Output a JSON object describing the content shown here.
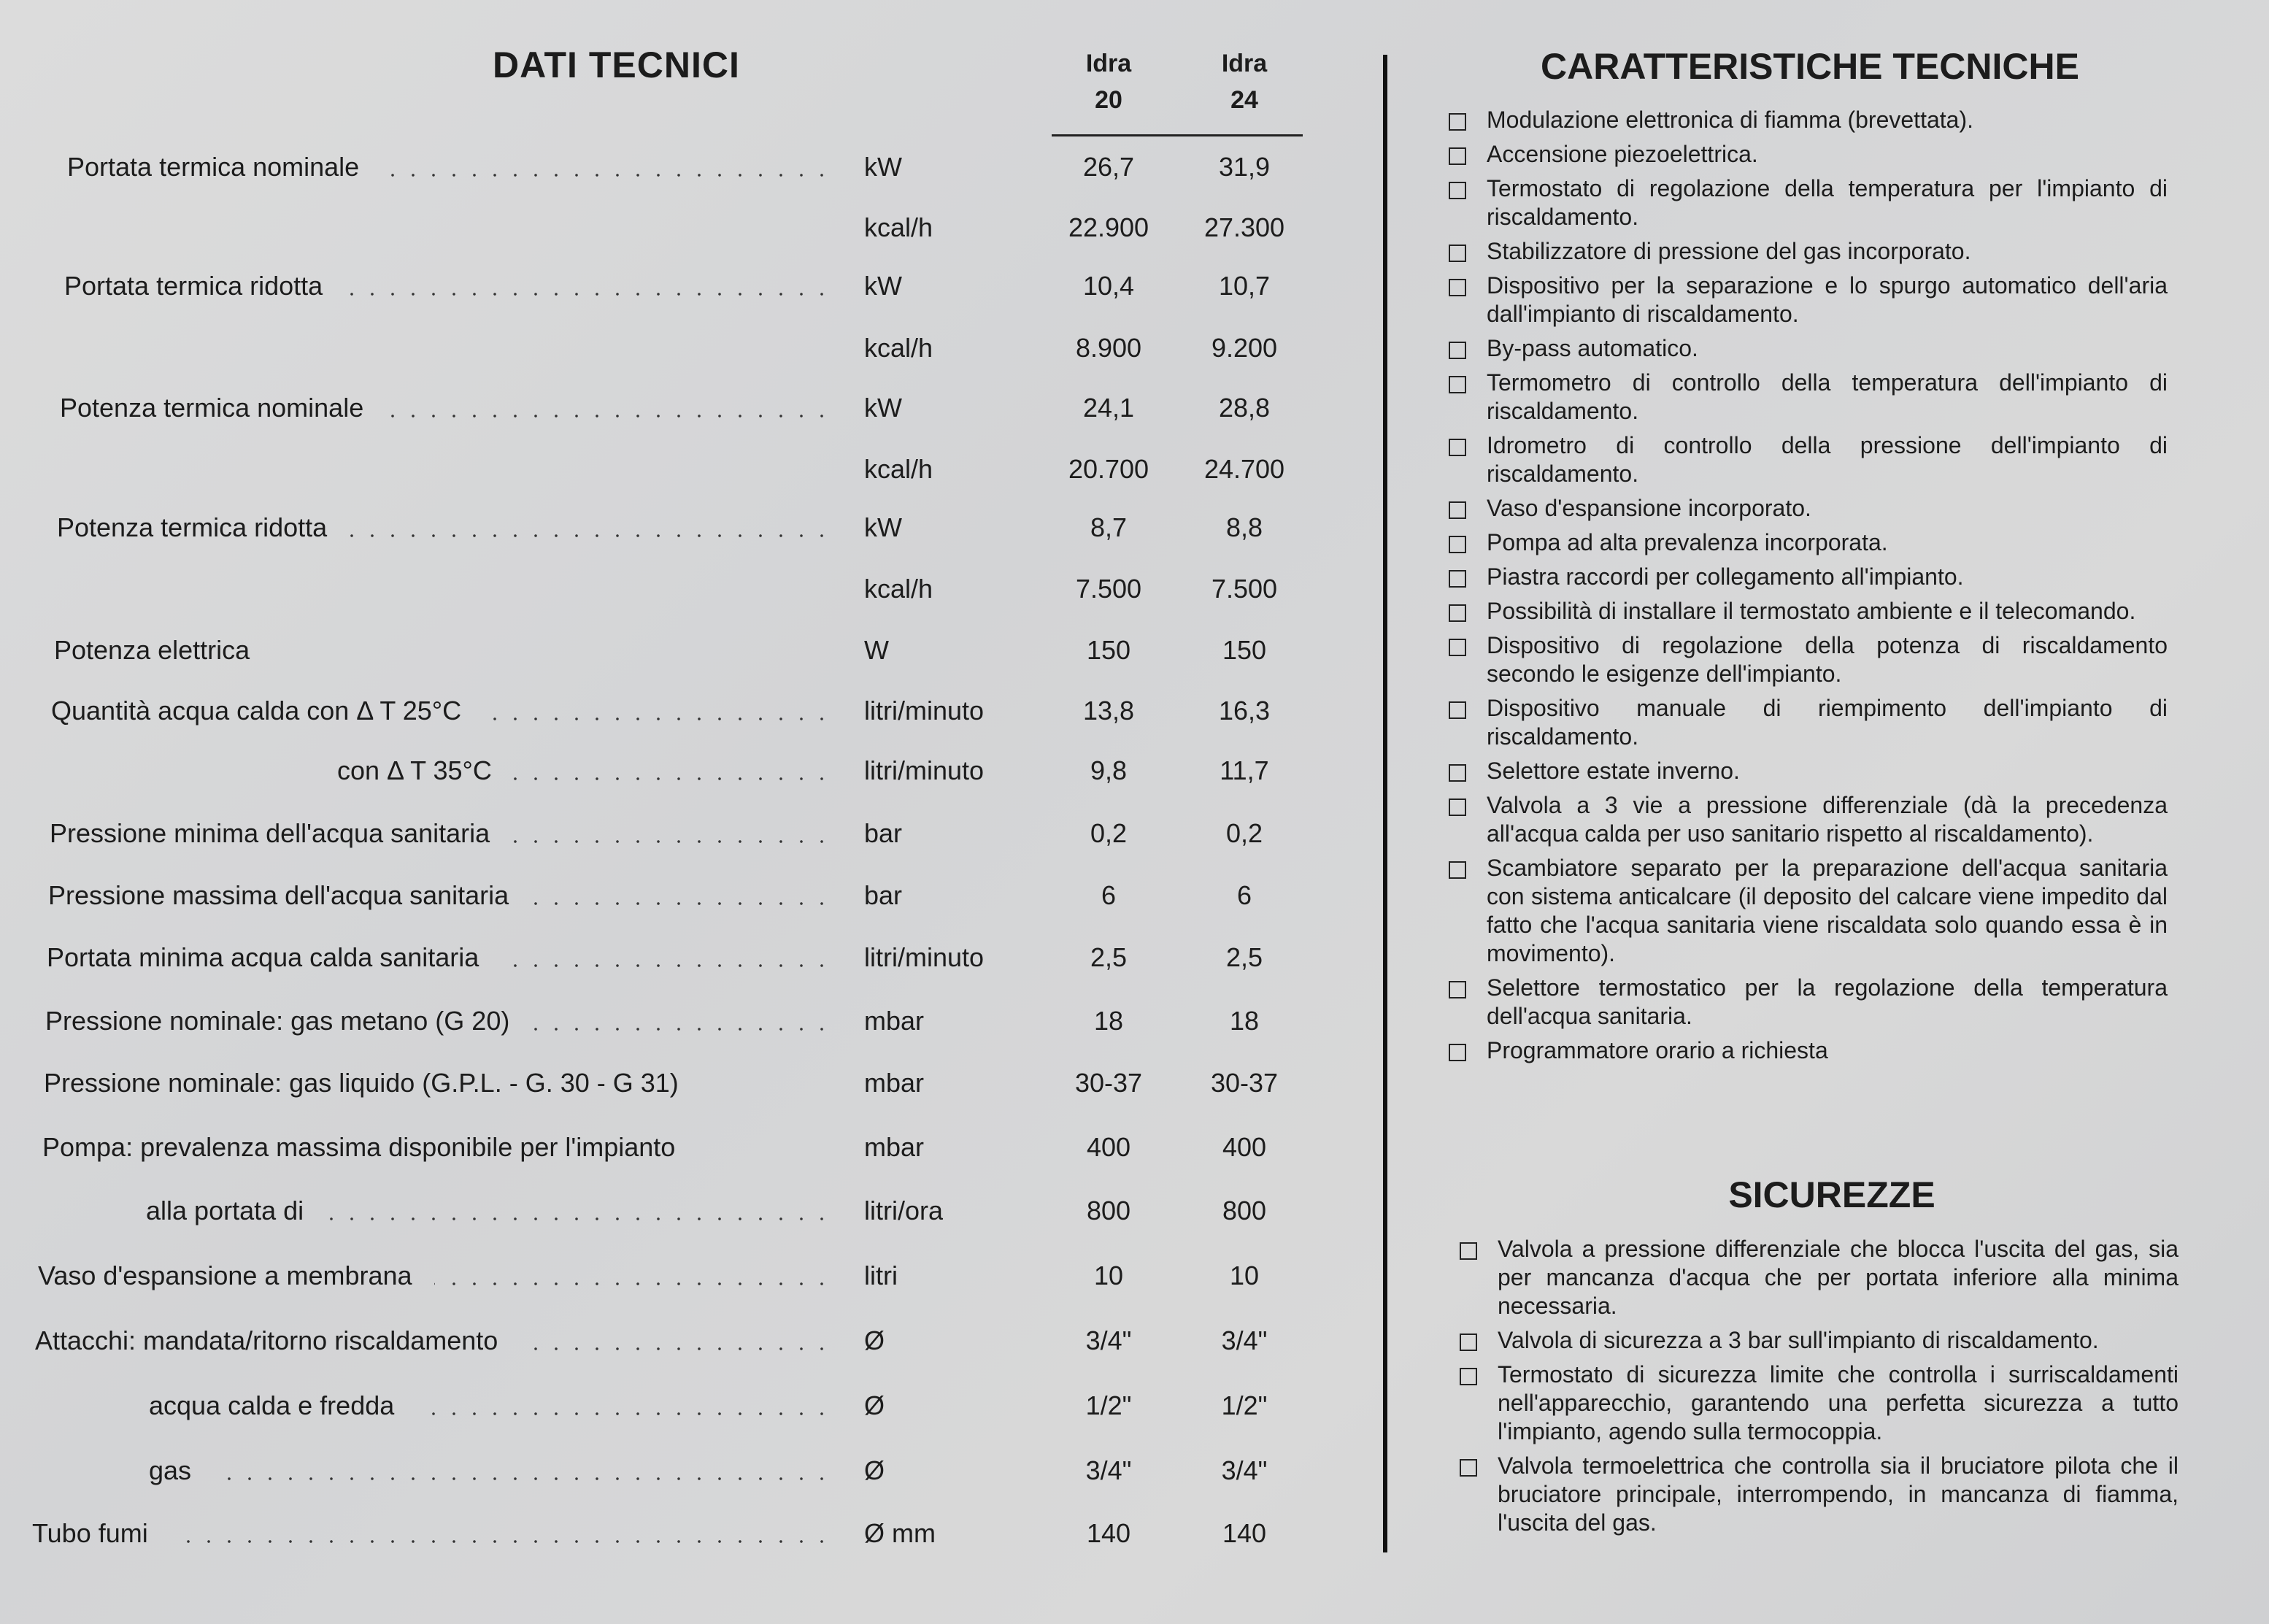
{
  "dati_tecnici": {
    "title": "DATI TECNICI",
    "columns": [
      {
        "line1": "Idra",
        "line2": "20"
      },
      {
        "line1": "Idra",
        "line2": "24"
      }
    ],
    "rows": [
      {
        "label": "Portata termica nominale",
        "unit": "kW",
        "idra20": "26,7",
        "idra24": "31,9"
      },
      {
        "label": "",
        "unit": "kcal/h",
        "idra20": "22.900",
        "idra24": "27.300"
      },
      {
        "label": "Portata termica ridotta",
        "unit": "kW",
        "idra20": "10,4",
        "idra24": "10,7"
      },
      {
        "label": "",
        "unit": "kcal/h",
        "idra20": "8.900",
        "idra24": "9.200"
      },
      {
        "label": "Potenza termica nominale",
        "unit": "kW",
        "idra20": "24,1",
        "idra24": "28,8"
      },
      {
        "label": "",
        "unit": "kcal/h",
        "idra20": "20.700",
        "idra24": "24.700"
      },
      {
        "label": "Potenza termica ridotta",
        "unit": "kW",
        "idra20": "8,7",
        "idra24": "8,8"
      },
      {
        "label": "",
        "unit": "kcal/h",
        "idra20": "7.500",
        "idra24": "7.500"
      },
      {
        "label": "Potenza elettrica",
        "unit": "W",
        "idra20": "150",
        "idra24": "150"
      },
      {
        "label": "Quantità acqua calda con Δ T 25°C",
        "unit": "litri/minuto",
        "idra20": "13,8",
        "idra24": "16,3"
      },
      {
        "label": "con Δ T 35°C",
        "unit": "litri/minuto",
        "idra20": "9,8",
        "idra24": "11,7"
      },
      {
        "label": "Pressione minima dell'acqua sanitaria",
        "unit": "bar",
        "idra20": "0,2",
        "idra24": "0,2"
      },
      {
        "label": "Pressione massima dell'acqua sanitaria",
        "unit": "bar",
        "idra20": "6",
        "idra24": "6"
      },
      {
        "label": "Portata minima acqua calda sanitaria",
        "unit": "litri/minuto",
        "idra20": "2,5",
        "idra24": "2,5"
      },
      {
        "label": "Pressione nominale: gas metano (G 20)",
        "unit": "mbar",
        "idra20": "18",
        "idra24": "18"
      },
      {
        "label": "Pressione nominale: gas liquido (G.P.L. - G. 30 - G 31)",
        "unit": "mbar",
        "idra20": "30-37",
        "idra24": "30-37"
      },
      {
        "label": "Pompa: prevalenza massima disponibile per l'impianto",
        "unit": "mbar",
        "idra20": "400",
        "idra24": "400"
      },
      {
        "label": "alla portata di",
        "unit": "litri/ora",
        "idra20": "800",
        "idra24": "800"
      },
      {
        "label": "Vaso d'espansione a membrana",
        "unit": "litri",
        "idra20": "10",
        "idra24": "10"
      },
      {
        "label": "Attacchi: mandata/ritorno riscaldamento",
        "unit": "Ø",
        "idra20": "3/4\"",
        "idra24": "3/4\""
      },
      {
        "label": "acqua calda e fredda",
        "unit": "Ø",
        "idra20": "1/2\"",
        "idra24": "1/2\""
      },
      {
        "label": "gas",
        "unit": "Ø",
        "idra20": "3/4\"",
        "idra24": "3/4\""
      },
      {
        "label": "Tubo fumi",
        "unit": "Ø mm",
        "idra20": "140",
        "idra24": "140"
      }
    ]
  },
  "caratteristiche": {
    "title": "CARATTERISTICHE TECNICHE",
    "items": [
      "Modulazione elettronica di fiamma (brevettata).",
      "Accensione piezoelettrica.",
      "Termostato di regolazione della temperatura per l'impianto di riscaldamento.",
      "Stabilizzatore di pressione del gas incorporato.",
      "Dispositivo per la separazione e lo spurgo automatico dell'aria dall'impianto di riscaldamento.",
      "By-pass automatico.",
      "Termometro di controllo della temperatura dell'impianto di riscaldamento.",
      "Idrometro di controllo della pressione dell'impianto di riscaldamento.",
      "Vaso d'espansione incorporato.",
      "Pompa ad alta prevalenza incorporata.",
      "Piastra raccordi per collegamento all'impianto.",
      "Possibilità di installare il termostato ambiente e il telecomando.",
      "Dispositivo di regolazione della potenza di riscaldamento secondo le esigenze dell'impianto.",
      "Dispositivo manuale di riempimento dell'impianto di riscaldamento.",
      "Selettore estate inverno.",
      "Valvola a 3 vie a pressione differenziale (dà la precedenza all'acqua calda per uso sanitario rispetto al riscaldamento).",
      "Scambiatore separato per la preparazione dell'acqua sanitaria con sistema anticalcare (il deposito del calcare viene impedito dal fatto che l'acqua sanitaria viene riscaldata solo quando essa è in movimento).",
      "Selettore termostatico per la regolazione della temperatura dell'acqua sanitaria.",
      "Programmatore orario a richiesta"
    ]
  },
  "sicurezze": {
    "title": "SICUREZZE",
    "items": [
      "Valvola a pressione differenziale che blocca l'uscita del gas, sia per mancanza d'acqua che per portata inferiore alla minima necessaria.",
      "Valvola di sicurezza a 3 bar sull'impianto di riscaldamento.",
      "Termostato di sicurezza limite che controlla i surriscaldamenti nell'apparecchio, garantendo una perfetta sicurezza a tutto l'impianto, agendo sulla termocoppia.",
      "Valvola termoelettrica che controlla sia il bruciatore pilota che il bruciatore principale, interrompendo, in mancanza di fiamma, l'uscita del gas."
    ]
  }
}
